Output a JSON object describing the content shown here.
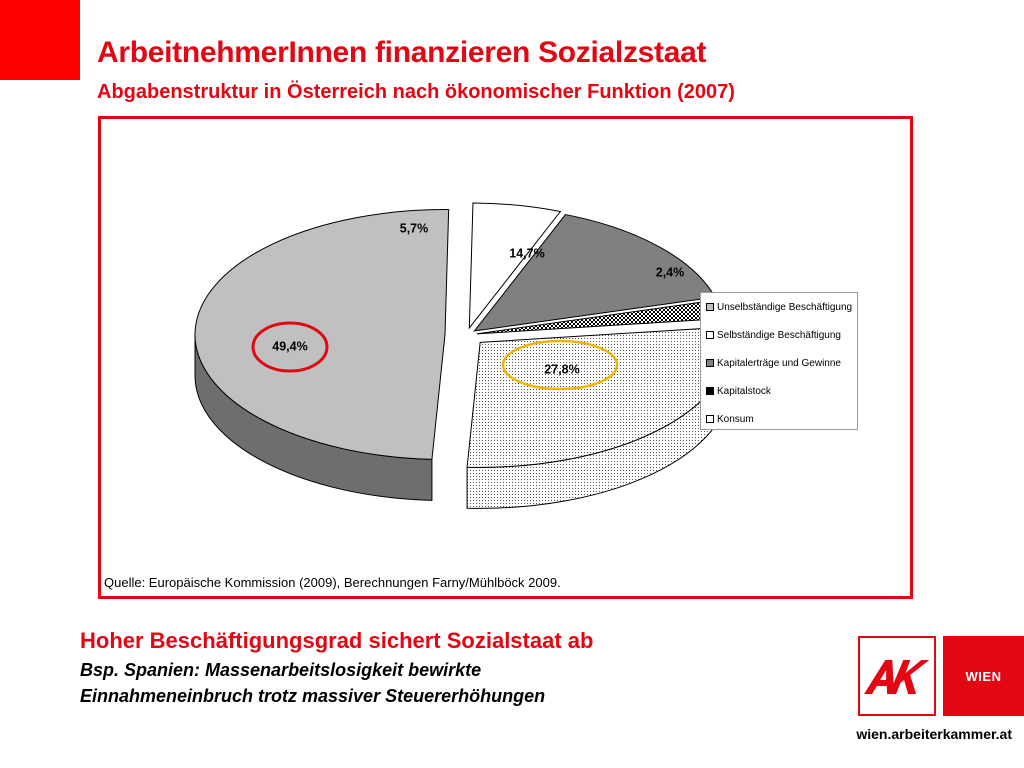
{
  "slide": {
    "title": "ArbeitnehmerInnen finanzieren Sozialzstaat",
    "subtitle": "Abgabenstruktur in Österreich nach ökonomischer Funktion (2007)",
    "source": "Quelle: Europäische Kommission (2009), Berechnungen Farny/Mühlböck 2009.",
    "bottom_title": "Hoher Beschäftigungsgrad sichert Sozialstaat ab",
    "bottom_line1": "Bsp. Spanien: Massenarbeitslosigkeit bewirkte",
    "bottom_line2": "Einnahmeneinbruch trotz massiver Steuererhöhungen",
    "wien_label": "WIEN",
    "url": "wien.arbeiterkammer.at",
    "accent_color": "#e30613"
  },
  "chart_data": {
    "type": "pie",
    "title": "",
    "categories": [
      "Unselbständige Beschäftigung",
      "Selbständige Beschäftigung",
      "Kapitalerträge und Gewinne",
      "Kapitalstock",
      "Konsum"
    ],
    "values": [
      49.4,
      5.7,
      14.7,
      2.4,
      27.8
    ],
    "labels": [
      "49,4%",
      "5,7%",
      "14,7%",
      "2,4%",
      "27,8%"
    ],
    "colors": [
      "#c0c0c0",
      "#ffffff",
      "#808080",
      "#000000",
      "#e8e8e8"
    ],
    "legend_position": "right",
    "highlighted": [
      "49,4%",
      "27,8%"
    ]
  }
}
